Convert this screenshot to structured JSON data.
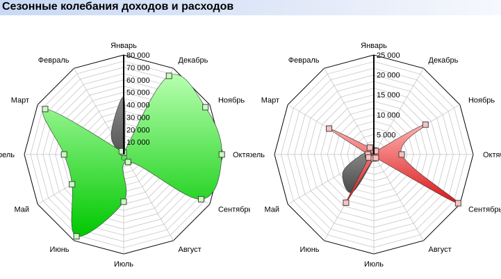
{
  "header": {
    "title": "Сезонные колебания доходов и расходов"
  },
  "chart_data": [
    {
      "type": "radar",
      "title": "",
      "categories": [
        "Январь",
        "Февраль",
        "Март",
        "Апрель",
        "Май",
        "Июнь",
        "Июль",
        "Август",
        "Сентябрь",
        "Октябрь",
        "Ноябрь",
        "Декабрь"
      ],
      "ticks": [
        "80 000",
        "70 000",
        "60 000",
        "50 000",
        "40 000",
        "30 000",
        "20 000",
        "10 000"
      ],
      "rlim": [
        0,
        80000
      ],
      "grid_rings": 16,
      "series": [
        {
          "values": [
            46000,
            20000,
            5000,
            0,
            0,
            0,
            0,
            9500,
            8000,
            7000,
            2000,
            2000
          ],
          "color": "#6b6b6b"
        },
        {
          "values": [
            1500,
            3000,
            73000,
            48000,
            48000,
            76000,
            38000,
            7000,
            72000,
            79000,
            76000,
            73000
          ],
          "color": "#33dd33",
          "markers": true
        }
      ]
    },
    {
      "type": "radar",
      "title": "",
      "categories": [
        "Январь",
        "Февраль",
        "Март",
        "Апрель",
        "Май",
        "Июнь",
        "Июль",
        "Август",
        "Сентябрь",
        "Октябрь",
        "Ноябрь",
        "Декабрь"
      ],
      "ticks": [
        "25 000",
        "20 000",
        "15 000",
        "10 000",
        "5 000"
      ],
      "rlim": [
        0,
        25000
      ],
      "grid_rings": 15,
      "series": [
        {
          "values": [
            100,
            1000,
            1000,
            3000,
            9000,
            11000,
            1000,
            0,
            0,
            0,
            0,
            0
          ],
          "color": "#555555"
        },
        {
          "values": [
            1000,
            2000,
            13000,
            1500,
            1500,
            14000,
            1000,
            1000,
            24500,
            7000,
            15000,
            1000
          ],
          "color": "#e23333",
          "markers": true
        }
      ]
    }
  ]
}
